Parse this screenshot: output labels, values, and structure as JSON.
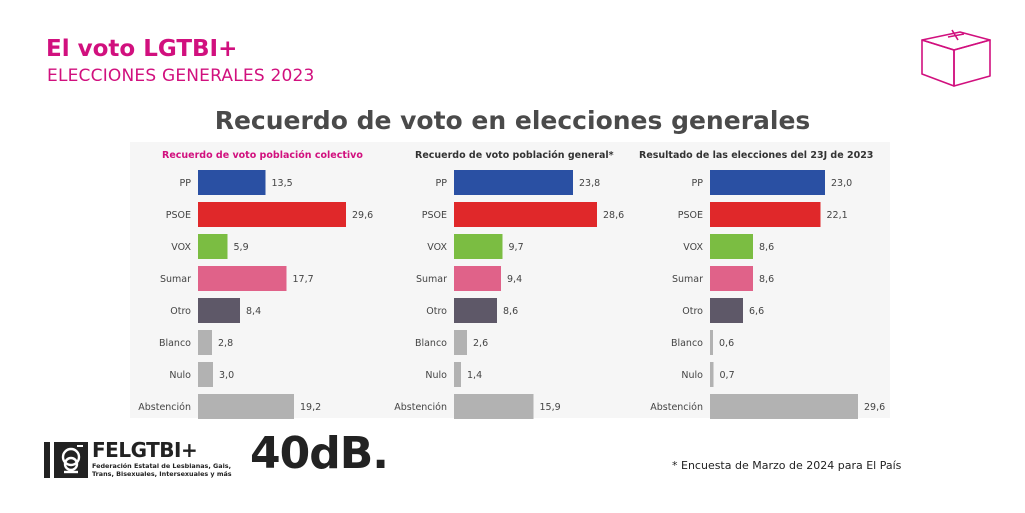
{
  "header": {
    "title": "El voto LGTBI+",
    "subtitle": "ELECCIONES GENERALES 2023"
  },
  "main_title": "Recuerdo de voto en elecciones generales",
  "footnote": "* Encuesta de Marzo de 2024 para El País",
  "logos": {
    "felgtbi_name": "FELGTBI+",
    "felgtbi_desc": "Federación Estatal de Lesbianas, Gais, Trans, Bisexuales, Intersexuales y más",
    "brand_40db": "40dB."
  },
  "colors": {
    "accent": "#d1107e",
    "PP": "#2a50a3",
    "PSOE": "#e0282a",
    "VOX": "#7bbd42",
    "Sumar": "#e06289",
    "Otro": "#5e5868",
    "Blanco": "#b2b2b2",
    "Nulo": "#b2b2b2",
    "Abstención": "#b2b2b2"
  },
  "chart_data": [
    {
      "type": "bar",
      "orientation": "horizontal",
      "title": "Recuerdo de voto población colectivo",
      "title_color": "#d1107e",
      "categories": [
        "PP",
        "PSOE",
        "VOX",
        "Sumar",
        "Otro",
        "Blanco",
        "Nulo",
        "Abstención"
      ],
      "values": [
        13.5,
        29.6,
        5.9,
        17.7,
        8.4,
        2.8,
        3.0,
        19.2
      ],
      "value_labels": [
        "13,5",
        "29,6",
        "5,9",
        "17,7",
        "8,4",
        "2,8",
        "3,0",
        "19,2"
      ]
    },
    {
      "type": "bar",
      "orientation": "horizontal",
      "title": "Recuerdo de voto población general*",
      "title_color": "#333333",
      "categories": [
        "PP",
        "PSOE",
        "VOX",
        "Sumar",
        "Otro",
        "Blanco",
        "Nulo",
        "Abstención"
      ],
      "values": [
        23.8,
        28.6,
        9.7,
        9.4,
        8.6,
        2.6,
        1.4,
        15.9
      ],
      "value_labels": [
        "23,8",
        "28,6",
        "9,7",
        "9,4",
        "8,6",
        "2,6",
        "1,4",
        "15,9"
      ]
    },
    {
      "type": "bar",
      "orientation": "horizontal",
      "title": "Resultado de las elecciones del 23J de 2023",
      "title_color": "#333333",
      "categories": [
        "PP",
        "PSOE",
        "VOX",
        "Sumar",
        "Otro",
        "Blanco",
        "Nulo",
        "Abstención"
      ],
      "values": [
        23.0,
        22.1,
        8.6,
        8.6,
        6.6,
        0.6,
        0.7,
        29.6
      ],
      "value_labels": [
        "23,0",
        "22,1",
        "8,6",
        "8,6",
        "6,6",
        "0,6",
        "0,7",
        "29,6"
      ]
    }
  ]
}
